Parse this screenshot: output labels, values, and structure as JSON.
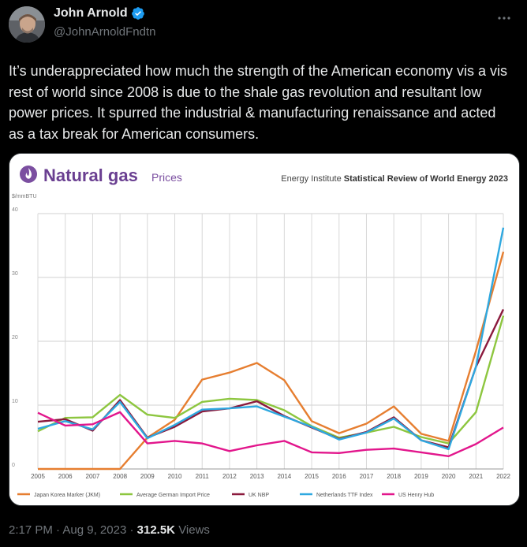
{
  "tweet": {
    "author_name": "John Arnold",
    "handle": "@JohnArnoldFndtn",
    "text": "It’s underappreciated how much the strength of the American economy vis a vis rest of world since 2008 is due to the shale gas revolution and resultant low power prices. It spurred the industrial & manufacturing renaissance and acted as a tax break for American consumers.",
    "more_icon": "more-icon",
    "verified_icon": "verified-badge-icon",
    "time": "2:17 PM",
    "separator": "·",
    "date": "Aug 9, 2023",
    "views_count": "312.5K",
    "views_label": "Views"
  },
  "chart_data": {
    "type": "line",
    "title": "Natural gas",
    "subtitle": "Prices",
    "source": "Energy Institute Statistical Review of World Energy 2023",
    "source_prefix": "Energy Institute",
    "source_suffix": "Statistical Review of World Energy 2023",
    "ylabel": "$/mmBTU",
    "ylim": [
      0,
      40
    ],
    "yticks": [
      0,
      10,
      20,
      30,
      40
    ],
    "grid": true,
    "legend_position": "bottom",
    "x": [
      "2005",
      "2006",
      "2007",
      "2008",
      "2009",
      "2010",
      "2011",
      "2012",
      "2013",
      "2014",
      "2015",
      "2016",
      "2017",
      "2018",
      "2019",
      "2020",
      "2021",
      "2022"
    ],
    "series": [
      {
        "name": "Japan Korea Marker (JKM)",
        "color": "#e67e30",
        "values": [
          0,
          0,
          0,
          0,
          4.9,
          7.7,
          14.0,
          15.1,
          16.6,
          13.9,
          7.5,
          5.6,
          7.1,
          9.8,
          5.5,
          4.4,
          18.5,
          34.0
        ]
      },
      {
        "name": "Average German Import Price",
        "color": "#8dc63f",
        "values": [
          5.9,
          8.0,
          8.1,
          11.6,
          8.5,
          8.0,
          10.5,
          11.0,
          10.8,
          9.2,
          6.7,
          4.9,
          5.7,
          6.6,
          5.0,
          4.0,
          8.9,
          24.0
        ]
      },
      {
        "name": "UK NBP",
        "color": "#8b1a3d",
        "values": [
          7.4,
          7.8,
          6.0,
          10.8,
          4.9,
          6.6,
          9.0,
          9.5,
          10.6,
          8.3,
          6.5,
          4.7,
          5.8,
          8.1,
          4.5,
          3.4,
          16.0,
          25.0
        ]
      },
      {
        "name": "Netherlands TTF Index",
        "color": "#2ea8e0",
        "values": [
          6.3,
          7.5,
          6.2,
          10.5,
          4.8,
          6.9,
          9.3,
          9.5,
          9.8,
          8.2,
          6.6,
          4.6,
          5.7,
          7.9,
          4.5,
          3.1,
          16.0,
          37.8
        ]
      },
      {
        "name": "US Henry Hub",
        "color": "#e2168c",
        "values": [
          8.8,
          6.8,
          7.0,
          8.9,
          4.0,
          4.4,
          4.0,
          2.8,
          3.7,
          4.4,
          2.6,
          2.5,
          3.0,
          3.2,
          2.6,
          2.0,
          3.9,
          6.5
        ]
      }
    ]
  }
}
